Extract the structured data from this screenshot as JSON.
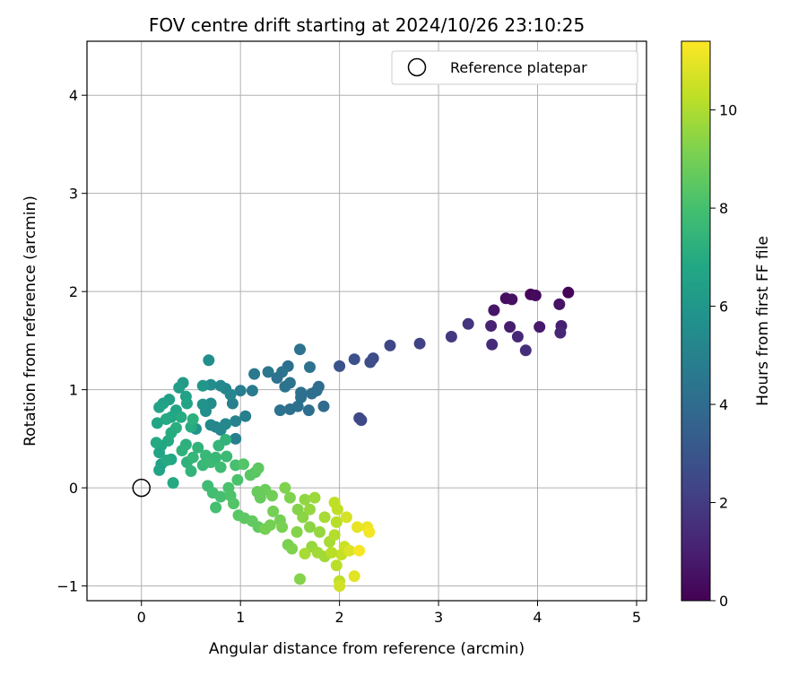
{
  "chart_data": {
    "type": "scatter",
    "title": "FOV centre drift starting at 2024/10/26 23:10:25",
    "xlabel": "Angular distance from reference (arcmin)",
    "ylabel": "Rotation from reference (arcmin)",
    "xlim": [
      -0.55,
      5.1
    ],
    "ylim": [
      -1.15,
      4.55
    ],
    "xticks": [
      0,
      1,
      2,
      3,
      4,
      5
    ],
    "yticks": [
      -1,
      0,
      1,
      2,
      3,
      4
    ],
    "grid": true,
    "legend": {
      "position": "top-right",
      "entries": [
        "Reference platepar"
      ]
    },
    "reference_point": {
      "x": 0,
      "y": 0,
      "label": "Reference platepar"
    },
    "colorbar": {
      "label": "Hours from first FF file",
      "colormap": "viridis",
      "min": 0,
      "max": 11.4,
      "ticks": [
        0,
        2,
        4,
        6,
        8,
        10
      ]
    },
    "series": [
      {
        "points": [
          {
            "x": 4.31,
            "y": 1.99,
            "c": 0.1
          },
          {
            "x": 3.93,
            "y": 1.97,
            "c": 0.2
          },
          {
            "x": 3.98,
            "y": 1.96,
            "c": 0.3
          },
          {
            "x": 3.68,
            "y": 1.93,
            "c": 0.4
          },
          {
            "x": 3.74,
            "y": 1.92,
            "c": 0.5
          },
          {
            "x": 4.22,
            "y": 1.87,
            "c": 0.6
          },
          {
            "x": 3.56,
            "y": 1.81,
            "c": 0.7
          },
          {
            "x": 4.02,
            "y": 1.64,
            "c": 0.8
          },
          {
            "x": 3.72,
            "y": 1.64,
            "c": 0.9
          },
          {
            "x": 4.24,
            "y": 1.65,
            "c": 1.0
          },
          {
            "x": 3.53,
            "y": 1.65,
            "c": 1.1
          },
          {
            "x": 4.23,
            "y": 1.58,
            "c": 1.2
          },
          {
            "x": 3.8,
            "y": 1.54,
            "c": 1.3
          },
          {
            "x": 3.54,
            "y": 1.46,
            "c": 1.4
          },
          {
            "x": 3.88,
            "y": 1.4,
            "c": 1.5
          },
          {
            "x": 3.3,
            "y": 1.67,
            "c": 1.7
          },
          {
            "x": 3.13,
            "y": 1.54,
            "c": 1.9
          },
          {
            "x": 2.81,
            "y": 1.47,
            "c": 2.2
          },
          {
            "x": 2.51,
            "y": 1.45,
            "c": 2.4
          },
          {
            "x": 2.34,
            "y": 1.32,
            "c": 2.6
          },
          {
            "x": 2.31,
            "y": 1.28,
            "c": 2.7
          },
          {
            "x": 2.15,
            "y": 1.31,
            "c": 2.8
          },
          {
            "x": 2.0,
            "y": 1.24,
            "c": 2.9
          },
          {
            "x": 2.2,
            "y": 0.71,
            "c": 2.5
          },
          {
            "x": 2.22,
            "y": 0.69,
            "c": 2.55
          },
          {
            "x": 1.48,
            "y": 1.24,
            "c": 4.2
          },
          {
            "x": 1.6,
            "y": 1.41,
            "c": 4.3
          },
          {
            "x": 1.7,
            "y": 1.23,
            "c": 4.3
          },
          {
            "x": 1.42,
            "y": 1.18,
            "c": 4.4
          },
          {
            "x": 1.28,
            "y": 1.18,
            "c": 4.5
          },
          {
            "x": 1.14,
            "y": 1.16,
            "c": 4.6
          },
          {
            "x": 1.37,
            "y": 1.12,
            "c": 4.3
          },
          {
            "x": 1.5,
            "y": 1.07,
            "c": 4.4
          },
          {
            "x": 1.45,
            "y": 1.03,
            "c": 4.4
          },
          {
            "x": 1.79,
            "y": 1.03,
            "c": 4.0
          },
          {
            "x": 1.77,
            "y": 0.99,
            "c": 4.1
          },
          {
            "x": 1.72,
            "y": 0.96,
            "c": 4.1
          },
          {
            "x": 1.61,
            "y": 0.97,
            "c": 4.2
          },
          {
            "x": 1.61,
            "y": 0.92,
            "c": 4.2
          },
          {
            "x": 1.84,
            "y": 0.83,
            "c": 4.0
          },
          {
            "x": 1.69,
            "y": 0.79,
            "c": 4.1
          },
          {
            "x": 1.5,
            "y": 0.8,
            "c": 4.2
          },
          {
            "x": 1.4,
            "y": 0.79,
            "c": 4.3
          },
          {
            "x": 1.58,
            "y": 0.83,
            "c": 4.2
          },
          {
            "x": 1.12,
            "y": 0.99,
            "c": 4.7
          },
          {
            "x": 1.0,
            "y": 0.99,
            "c": 4.8
          },
          {
            "x": 1.05,
            "y": 0.73,
            "c": 4.9
          },
          {
            "x": 0.92,
            "y": 0.86,
            "c": 4.9
          },
          {
            "x": 0.95,
            "y": 0.68,
            "c": 5.0
          },
          {
            "x": 0.95,
            "y": 0.5,
            "c": 4.9
          },
          {
            "x": 0.85,
            "y": 1.01,
            "c": 5.1
          },
          {
            "x": 0.9,
            "y": 0.95,
            "c": 5.2
          },
          {
            "x": 0.8,
            "y": 1.04,
            "c": 5.3
          },
          {
            "x": 0.7,
            "y": 1.05,
            "c": 5.5
          },
          {
            "x": 0.68,
            "y": 1.3,
            "c": 5.6
          },
          {
            "x": 0.7,
            "y": 0.86,
            "c": 5.5
          },
          {
            "x": 0.65,
            "y": 0.78,
            "c": 5.6
          },
          {
            "x": 0.7,
            "y": 0.64,
            "c": 5.3
          },
          {
            "x": 0.75,
            "y": 0.62,
            "c": 5.2
          },
          {
            "x": 0.8,
            "y": 0.59,
            "c": 5.3
          },
          {
            "x": 0.85,
            "y": 0.65,
            "c": 5.3
          },
          {
            "x": 0.62,
            "y": 0.85,
            "c": 5.8
          },
          {
            "x": 0.55,
            "y": 0.6,
            "c": 5.9
          },
          {
            "x": 0.62,
            "y": 1.04,
            "c": 6.0
          },
          {
            "x": 0.42,
            "y": 1.07,
            "c": 6.2
          },
          {
            "x": 0.38,
            "y": 1.02,
            "c": 6.3
          },
          {
            "x": 0.28,
            "y": 0.9,
            "c": 6.4
          },
          {
            "x": 0.22,
            "y": 0.86,
            "c": 6.5
          },
          {
            "x": 0.18,
            "y": 0.82,
            "c": 6.6
          },
          {
            "x": 0.45,
            "y": 0.93,
            "c": 6.5
          },
          {
            "x": 0.46,
            "y": 0.86,
            "c": 6.6
          },
          {
            "x": 0.35,
            "y": 0.79,
            "c": 6.7
          },
          {
            "x": 0.3,
            "y": 0.72,
            "c": 6.8
          },
          {
            "x": 0.25,
            "y": 0.7,
            "c": 6.9
          },
          {
            "x": 0.16,
            "y": 0.66,
            "c": 6.7
          },
          {
            "x": 0.4,
            "y": 0.72,
            "c": 7.0
          },
          {
            "x": 0.35,
            "y": 0.61,
            "c": 7.1
          },
          {
            "x": 0.3,
            "y": 0.56,
            "c": 7.0
          },
          {
            "x": 0.27,
            "y": 0.48,
            "c": 6.9
          },
          {
            "x": 0.2,
            "y": 0.43,
            "c": 6.8
          },
          {
            "x": 0.18,
            "y": 0.36,
            "c": 6.7
          },
          {
            "x": 0.2,
            "y": 0.24,
            "c": 6.6
          },
          {
            "x": 0.18,
            "y": 0.18,
            "c": 6.6
          },
          {
            "x": 0.3,
            "y": 0.29,
            "c": 6.8
          },
          {
            "x": 0.32,
            "y": 0.05,
            "c": 6.9
          },
          {
            "x": 0.45,
            "y": 0.44,
            "c": 7.2
          },
          {
            "x": 0.41,
            "y": 0.38,
            "c": 7.3
          },
          {
            "x": 0.46,
            "y": 0.26,
            "c": 7.3
          },
          {
            "x": 0.5,
            "y": 0.17,
            "c": 7.4
          },
          {
            "x": 0.52,
            "y": 0.31,
            "c": 7.5
          },
          {
            "x": 0.57,
            "y": 0.41,
            "c": 7.4
          },
          {
            "x": 0.5,
            "y": 0.62,
            "c": 7.0
          },
          {
            "x": 0.52,
            "y": 0.7,
            "c": 7.2
          },
          {
            "x": 0.15,
            "y": 0.46,
            "c": 6.9
          },
          {
            "x": 0.25,
            "y": 0.28,
            "c": 6.9
          },
          {
            "x": 0.65,
            "y": 0.33,
            "c": 7.6
          },
          {
            "x": 0.62,
            "y": 0.23,
            "c": 7.6
          },
          {
            "x": 0.7,
            "y": 0.26,
            "c": 7.7
          },
          {
            "x": 0.75,
            "y": 0.31,
            "c": 7.6
          },
          {
            "x": 0.78,
            "y": 0.43,
            "c": 7.5
          },
          {
            "x": 0.85,
            "y": 0.49,
            "c": 7.4
          },
          {
            "x": 0.86,
            "y": 0.32,
            "c": 7.7
          },
          {
            "x": 0.8,
            "y": 0.21,
            "c": 7.8
          },
          {
            "x": 0.67,
            "y": 0.02,
            "c": 7.8
          },
          {
            "x": 0.72,
            "y": -0.05,
            "c": 7.9
          },
          {
            "x": 0.8,
            "y": -0.09,
            "c": 8.0
          },
          {
            "x": 0.75,
            "y": -0.2,
            "c": 8.0
          },
          {
            "x": 0.88,
            "y": 0.0,
            "c": 8.1
          },
          {
            "x": 0.9,
            "y": -0.08,
            "c": 8.2
          },
          {
            "x": 0.93,
            "y": -0.16,
            "c": 8.3
          },
          {
            "x": 0.97,
            "y": 0.08,
            "c": 8.1
          },
          {
            "x": 0.95,
            "y": 0.23,
            "c": 8.0
          },
          {
            "x": 1.03,
            "y": 0.24,
            "c": 8.3
          },
          {
            "x": 1.1,
            "y": 0.13,
            "c": 8.4
          },
          {
            "x": 1.15,
            "y": 0.16,
            "c": 8.4
          },
          {
            "x": 1.18,
            "y": 0.2,
            "c": 8.5
          },
          {
            "x": 0.98,
            "y": -0.28,
            "c": 8.4
          },
          {
            "x": 1.04,
            "y": -0.31,
            "c": 8.5
          },
          {
            "x": 1.12,
            "y": -0.34,
            "c": 8.6
          },
          {
            "x": 1.18,
            "y": -0.4,
            "c": 8.6
          },
          {
            "x": 1.17,
            "y": -0.04,
            "c": 8.7
          },
          {
            "x": 1.2,
            "y": -0.1,
            "c": 8.7
          },
          {
            "x": 1.25,
            "y": -0.02,
            "c": 8.8
          },
          {
            "x": 1.32,
            "y": -0.08,
            "c": 8.9
          },
          {
            "x": 1.33,
            "y": -0.24,
            "c": 9.0
          },
          {
            "x": 1.3,
            "y": -0.38,
            "c": 9.0
          },
          {
            "x": 1.25,
            "y": -0.42,
            "c": 9.0
          },
          {
            "x": 1.4,
            "y": -0.33,
            "c": 9.0
          },
          {
            "x": 1.45,
            "y": 0.0,
            "c": 9.2
          },
          {
            "x": 1.5,
            "y": -0.1,
            "c": 9.2
          },
          {
            "x": 1.42,
            "y": -0.4,
            "c": 9.1
          },
          {
            "x": 1.48,
            "y": -0.58,
            "c": 9.1
          },
          {
            "x": 1.52,
            "y": -0.62,
            "c": 9.2
          },
          {
            "x": 1.57,
            "y": -0.45,
            "c": 9.3
          },
          {
            "x": 1.6,
            "y": -0.93,
            "c": 9.3
          },
          {
            "x": 1.58,
            "y": -0.22,
            "c": 9.3
          },
          {
            "x": 1.63,
            "y": -0.3,
            "c": 9.4
          },
          {
            "x": 1.65,
            "y": -0.12,
            "c": 9.5
          },
          {
            "x": 1.7,
            "y": -0.22,
            "c": 9.6
          },
          {
            "x": 1.7,
            "y": -0.4,
            "c": 9.4
          },
          {
            "x": 1.75,
            "y": -0.1,
            "c": 9.7
          },
          {
            "x": 1.72,
            "y": -0.6,
            "c": 9.6
          },
          {
            "x": 1.8,
            "y": -0.45,
            "c": 9.6
          },
          {
            "x": 1.85,
            "y": -0.3,
            "c": 9.9
          },
          {
            "x": 1.78,
            "y": -0.66,
            "c": 9.8
          },
          {
            "x": 1.85,
            "y": -0.7,
            "c": 9.8
          },
          {
            "x": 1.9,
            "y": -0.55,
            "c": 9.9
          },
          {
            "x": 1.95,
            "y": -0.15,
            "c": 10.3
          },
          {
            "x": 1.98,
            "y": -0.22,
            "c": 10.3
          },
          {
            "x": 1.97,
            "y": -0.35,
            "c": 10.2
          },
          {
            "x": 1.95,
            "y": -0.48,
            "c": 10.1
          },
          {
            "x": 1.97,
            "y": -0.79,
            "c": 10.2
          },
          {
            "x": 2.0,
            "y": -0.95,
            "c": 10.3
          },
          {
            "x": 2.0,
            "y": -1.0,
            "c": 10.6
          },
          {
            "x": 2.02,
            "y": -0.68,
            "c": 10.4
          },
          {
            "x": 2.05,
            "y": -0.6,
            "c": 10.5
          },
          {
            "x": 2.07,
            "y": -0.3,
            "c": 10.7
          },
          {
            "x": 2.1,
            "y": -0.64,
            "c": 10.8
          },
          {
            "x": 2.15,
            "y": -0.9,
            "c": 10.9
          },
          {
            "x": 2.18,
            "y": -0.4,
            "c": 11.0
          },
          {
            "x": 2.28,
            "y": -0.4,
            "c": 11.1
          },
          {
            "x": 2.3,
            "y": -0.45,
            "c": 11.2
          },
          {
            "x": 2.2,
            "y": -0.64,
            "c": 11.3
          },
          {
            "x": 1.65,
            "y": -0.67,
            "c": 9.9
          },
          {
            "x": 1.92,
            "y": -0.66,
            "c": 10.2
          }
        ]
      }
    ]
  }
}
